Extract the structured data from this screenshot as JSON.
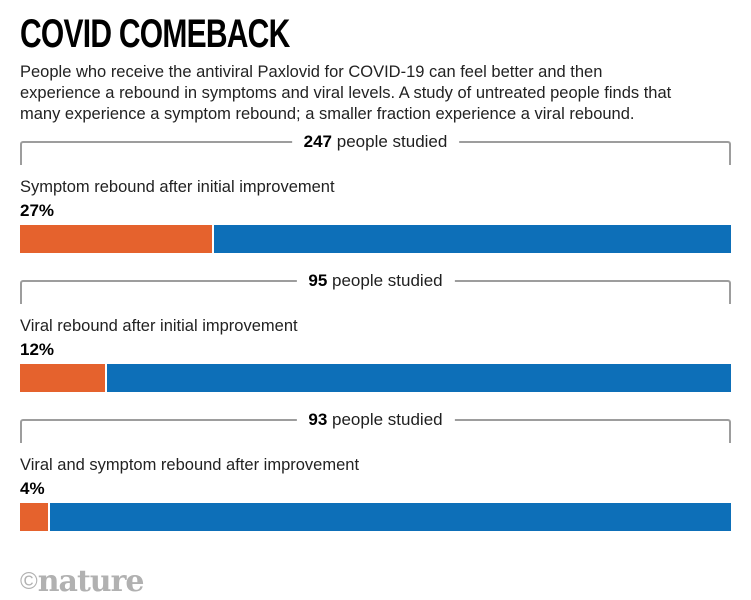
{
  "page": {
    "title": "COVID COMEBACK",
    "description": "People who receive the antiviral Paxlovid for COVID-19 can feel better and then experience a rebound in symptoms and viral levels. A study of untreated people finds that many experience a symptom rebound; a smaller fraction experience a viral rebound."
  },
  "chart_data": {
    "type": "bar",
    "orientation": "horizontal",
    "unit": "percent",
    "xlim": [
      0,
      100
    ],
    "colors": {
      "rebound_segment": "#E5622D",
      "remainder_segment": "#0D6FB8",
      "bracket_line": "#9d9d9d",
      "logo_gray": "#b1b1b1"
    },
    "groups": [
      {
        "people_count": "247",
        "people_suffix": " people studied",
        "label": "Symptom rebound after initial improvement",
        "percent": 27,
        "percent_label": "27%"
      },
      {
        "people_count": "95",
        "people_suffix": " people studied",
        "label": "Viral rebound after initial improvement",
        "percent": 12,
        "percent_label": "12%"
      },
      {
        "people_count": "93",
        "people_suffix": " people studied",
        "label": "Viral and symptom rebound after improvement",
        "percent": 4,
        "percent_label": "4%"
      }
    ]
  },
  "footer": {
    "logo_copyright": "©",
    "logo_text": "nature"
  }
}
